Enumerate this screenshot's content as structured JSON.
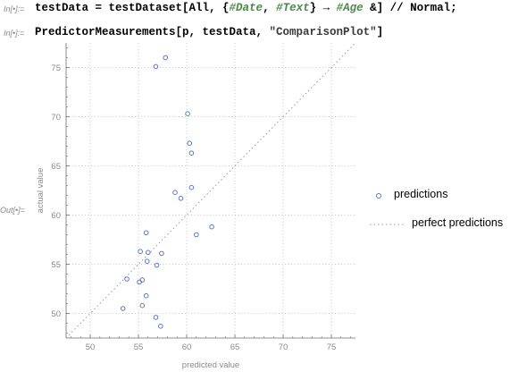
{
  "cells": [
    {
      "label": "In[•]:=",
      "parts": [
        {
          "t": "testData = testDataset[All, {",
          "c": ""
        },
        {
          "t": "#Date",
          "c": "slot"
        },
        {
          "t": ", ",
          "c": ""
        },
        {
          "t": "#Text",
          "c": "slot"
        },
        {
          "t": "} → ",
          "c": ""
        },
        {
          "t": "#Age",
          "c": "slot"
        },
        {
          "t": " &] // Normal;",
          "c": ""
        }
      ]
    },
    {
      "label": "In[•]:=",
      "parts": [
        {
          "t": "PredictorMeasurements[p, testData, ",
          "c": ""
        },
        {
          "t": "\"ComparisonPlot\"",
          "c": "str"
        },
        {
          "t": "]",
          "c": ""
        }
      ]
    }
  ],
  "out_label": "Out[•]=",
  "legend": {
    "predictions": "predictions",
    "perfect": "perfect predictions"
  },
  "colors": {
    "points": "#5b78c9",
    "diagonal": "#9a9a9a",
    "grid": "#b8b8b8",
    "axis": "#6e6e6e",
    "label": "#8a8a8a"
  },
  "chart_data": {
    "type": "scatter",
    "xlabel": "predicted value",
    "ylabel": "actual value",
    "xlim": [
      47.5,
      77.5
    ],
    "ylim": [
      47.5,
      77.5
    ],
    "xticks": [
      50,
      55,
      60,
      65,
      70,
      75
    ],
    "yticks": [
      50,
      55,
      60,
      65,
      70,
      75
    ],
    "grid": true,
    "legend_position": "right",
    "series": [
      {
        "name": "predictions",
        "marker": "circle",
        "points": [
          [
            56.8,
            75.1
          ],
          [
            57.8,
            76.0
          ],
          [
            60.1,
            70.3
          ],
          [
            60.3,
            67.3
          ],
          [
            60.5,
            66.3
          ],
          [
            58.8,
            62.3
          ],
          [
            59.4,
            61.7
          ],
          [
            60.5,
            62.8
          ],
          [
            55.8,
            58.2
          ],
          [
            62.6,
            58.8
          ],
          [
            61.0,
            58.0
          ],
          [
            55.2,
            56.3
          ],
          [
            56.0,
            56.2
          ],
          [
            57.4,
            56.1
          ],
          [
            55.9,
            55.3
          ],
          [
            56.9,
            54.9
          ],
          [
            53.8,
            53.5
          ],
          [
            55.4,
            53.4
          ],
          [
            55.1,
            53.2
          ],
          [
            55.8,
            51.8
          ],
          [
            55.4,
            50.8
          ],
          [
            53.4,
            50.5
          ],
          [
            56.8,
            49.6
          ],
          [
            57.3,
            48.7
          ]
        ]
      },
      {
        "name": "perfect predictions",
        "type": "line",
        "style": "dotted",
        "points": [
          [
            47.5,
            47.5
          ],
          [
            77.5,
            77.5
          ]
        ]
      }
    ]
  }
}
